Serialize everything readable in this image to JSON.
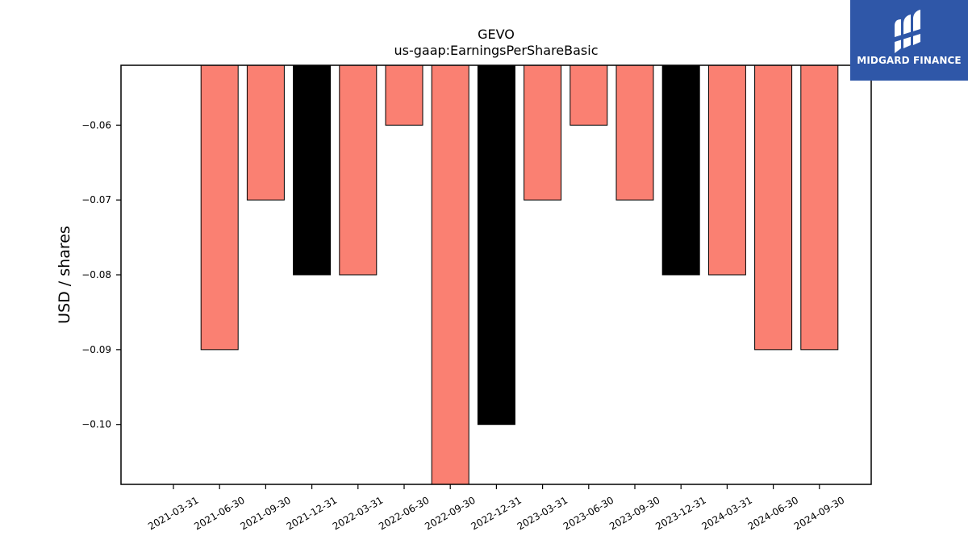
{
  "chart_data": {
    "type": "bar",
    "title": "GEVO",
    "subtitle": "us-gaap:EarningsPerShareBasic",
    "xlabel": "",
    "ylabel": "USD / shares",
    "categories": [
      "2021-03-31",
      "2021-06-30",
      "2021-09-30",
      "2021-12-31",
      "2022-03-31",
      "2022-06-30",
      "2022-09-30",
      "2022-12-31",
      "2023-03-31",
      "2023-06-30",
      "2023-09-30",
      "2023-12-31",
      "2024-03-31",
      "2024-06-30",
      "2024-09-30"
    ],
    "values": [
      null,
      -0.09,
      -0.07,
      -0.08,
      -0.08,
      -0.06,
      -0.11,
      -0.1,
      -0.07,
      -0.06,
      -0.07,
      -0.08,
      -0.08,
      -0.09,
      -0.09
    ],
    "bar_colors": [
      "#fa8072",
      "#fa8072",
      "#fa8072",
      "#000000",
      "#fa8072",
      "#fa8072",
      "#fa8072",
      "#000000",
      "#fa8072",
      "#fa8072",
      "#fa8072",
      "#000000",
      "#fa8072",
      "#fa8072",
      "#fa8072"
    ],
    "ylim": [
      -0.108,
      -0.052
    ],
    "yticks": [
      -0.06,
      -0.07,
      -0.08,
      -0.09,
      -0.1
    ],
    "ytick_labels": [
      "−0.06",
      "−0.07",
      "−0.08",
      "−0.09",
      "−0.10"
    ],
    "grid": false,
    "legend": "none"
  },
  "logo": {
    "text": "MIDGARD FINANCE"
  },
  "colors": {
    "logo_bg": "#2f57a8",
    "bar_default": "#fa8072",
    "bar_year_end": "#000000"
  }
}
